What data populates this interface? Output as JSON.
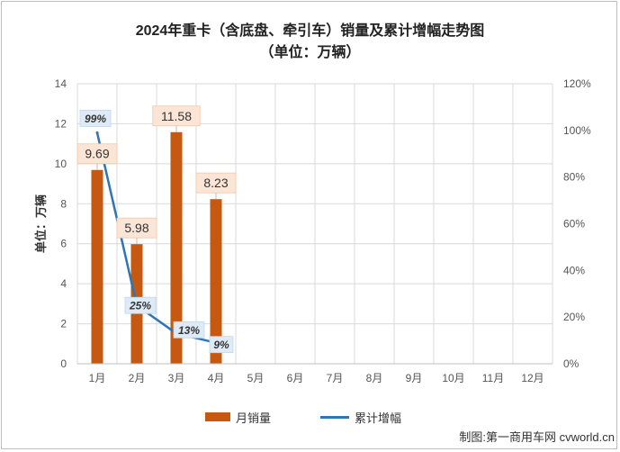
{
  "title": "2024年重卡（含底盘、牵引车）销量及累计增幅走势图",
  "subtitle": "（单位：万辆）",
  "credit": "制图:第一商用车网 cvworld.cn",
  "chart_data": {
    "type": "bar",
    "categories": [
      "1月",
      "2月",
      "3月",
      "4月",
      "5月",
      "6月",
      "7月",
      "8月",
      "9月",
      "10月",
      "11月",
      "12月"
    ],
    "series": [
      {
        "name": "月销量",
        "type": "bar",
        "axis": "left",
        "color": "#c65911",
        "values": [
          9.69,
          5.98,
          11.58,
          8.23,
          null,
          null,
          null,
          null,
          null,
          null,
          null,
          null
        ],
        "labels": [
          "9.69",
          "5.98",
          "11.58",
          "8.23"
        ]
      },
      {
        "name": "累计增幅",
        "type": "line",
        "axis": "right",
        "color": "#2e75b6",
        "values": [
          0.99,
          0.25,
          0.13,
          0.09,
          null,
          null,
          null,
          null,
          null,
          null,
          null,
          null
        ],
        "labels": [
          "99%",
          "25%",
          "13%",
          "9%"
        ]
      }
    ],
    "ylabel": "单位：万辆",
    "ylim": [
      0,
      14
    ],
    "yticks": [
      "0",
      "2",
      "4",
      "6",
      "8",
      "10",
      "12",
      "14"
    ],
    "y2lim": [
      0,
      1.2
    ],
    "y2ticks": [
      "0%",
      "20%",
      "40%",
      "60%",
      "80%",
      "100%",
      "120%"
    ],
    "grid": true,
    "legend": "bottom"
  }
}
